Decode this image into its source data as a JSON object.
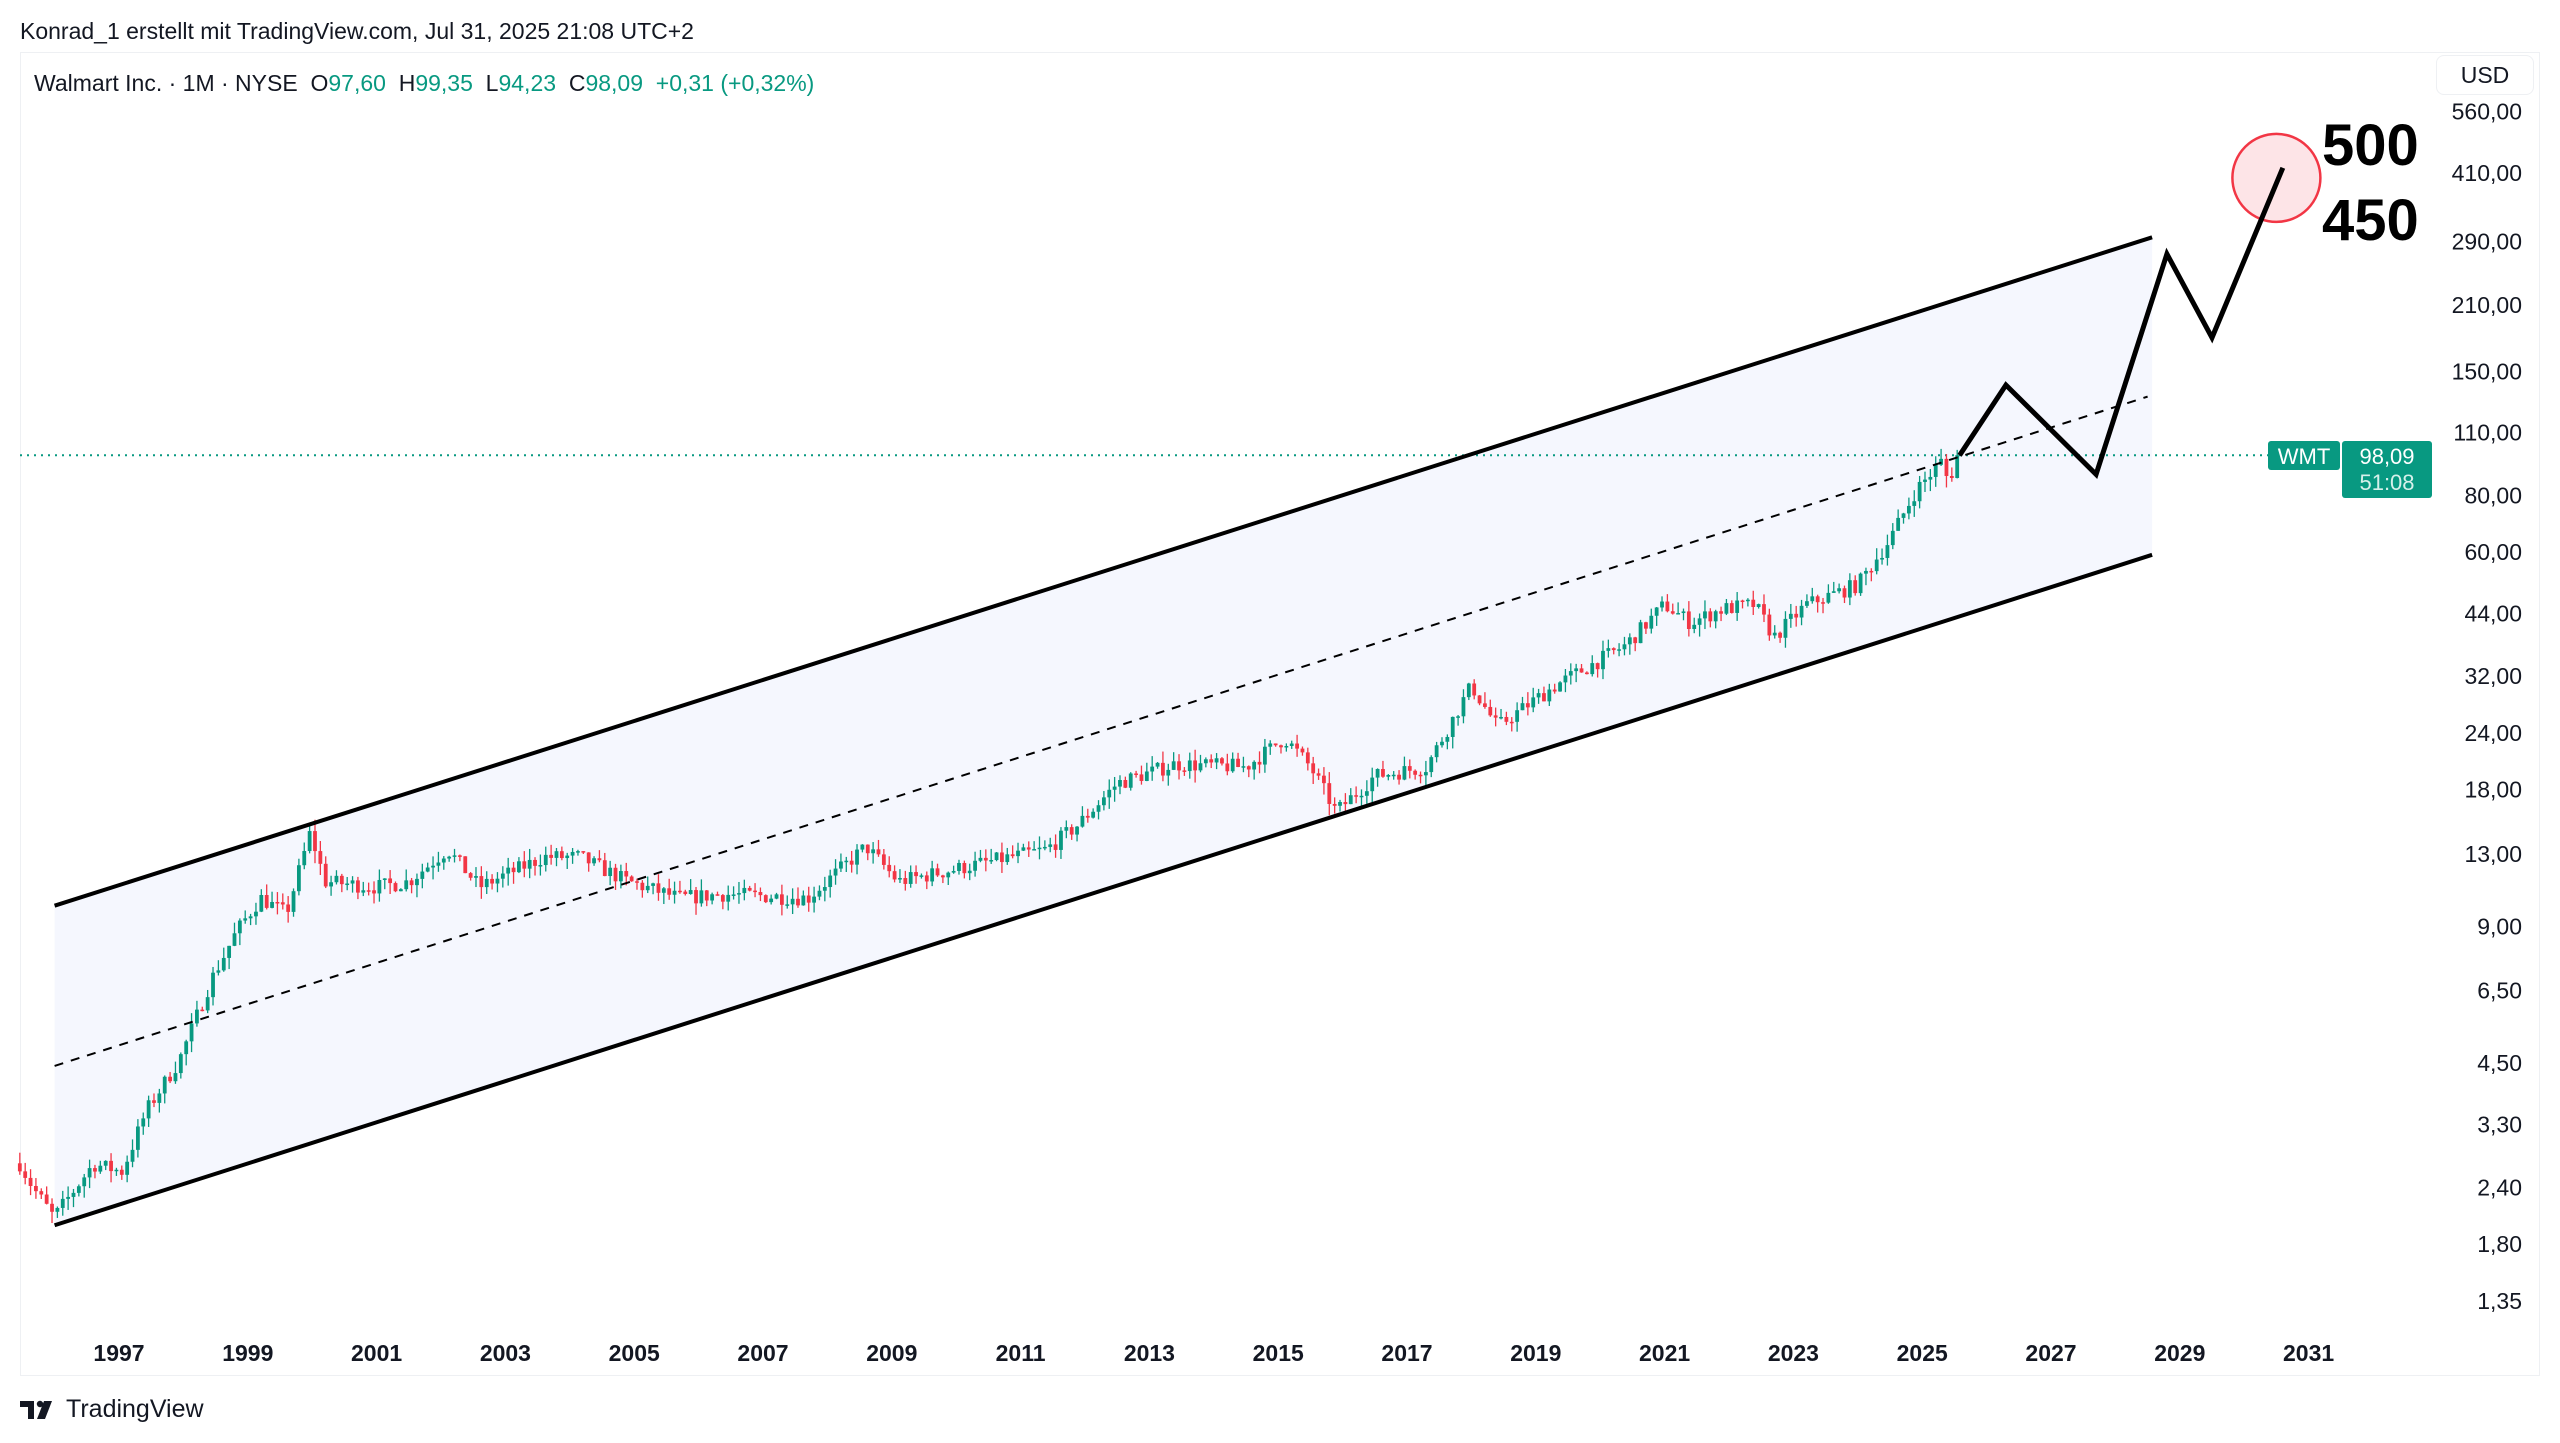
{
  "credit": "Konrad_1 erstellt mit TradingView.com, Jul 31, 2025 21:08 UTC+2",
  "legend": {
    "symbol": "Walmart Inc. · 1M · NYSE",
    "open_label": "O",
    "open": "97,60",
    "high_label": "H",
    "high": "99,35",
    "low_label": "L",
    "low": "94,23",
    "close_label": "C",
    "close": "98,09",
    "change": "+0,31 (+0,32%)"
  },
  "currency_button": "USD",
  "footer": {
    "logo_text": "TradingView",
    "icon": "tradingview-logo-icon"
  },
  "colors": {
    "up": "#089981",
    "down": "#f23645",
    "channel_fill": "#f5f7fe",
    "lines": "#000000",
    "target_circle": "#f23645"
  },
  "chart_data": {
    "type": "candlestick",
    "interval": "1M",
    "y_scale": "log",
    "grid": false,
    "y_ticks": [
      "560,00",
      "410,00",
      "290,00",
      "210,00",
      "150,00",
      "110,00",
      "80,00",
      "60,00",
      "44,00",
      "32,00",
      "24,00",
      "18,00",
      "13,00",
      "9,00",
      "6,50",
      "4,50",
      "3,30",
      "2,40",
      "1,80",
      "1,35"
    ],
    "x_ticks": [
      "1997",
      "1999",
      "2001",
      "2003",
      "2005",
      "2007",
      "2009",
      "2011",
      "2013",
      "2015",
      "2017",
      "2019",
      "2021",
      "2023",
      "2025",
      "2027",
      "2029",
      "2031"
    ],
    "price_path": [
      [
        1995.46,
        2.71
      ],
      [
        1995.66,
        2.4
      ],
      [
        1995.99,
        2.06
      ],
      [
        1996.6,
        2.7
      ],
      [
        1997.05,
        2.6
      ],
      [
        1997.43,
        3.55
      ],
      [
        1997.93,
        4.55
      ],
      [
        1998.44,
        6.9
      ],
      [
        1998.83,
        8.8
      ],
      [
        1999.2,
        10.4
      ],
      [
        1999.6,
        9.6
      ],
      [
        1999.97,
        14.5
      ],
      [
        2000.2,
        11.3
      ],
      [
        2001.0,
        11
      ],
      [
        2001.5,
        11.3
      ],
      [
        2002.1,
        13.3
      ],
      [
        2002.6,
        11
      ],
      [
        2003.6,
        12.8
      ],
      [
        2004.15,
        12.8
      ],
      [
        2004.9,
        11.3
      ],
      [
        2005.7,
        10.4
      ],
      [
        2006.4,
        10.6
      ],
      [
        2007.7,
        10.4
      ],
      [
        2008.6,
        13.5
      ],
      [
        2009.1,
        11.3
      ],
      [
        2010.4,
        12.4
      ],
      [
        2011.4,
        13.3
      ],
      [
        2011.9,
        15.1
      ],
      [
        2012.5,
        18.6
      ],
      [
        2013.4,
        20.5
      ],
      [
        2014.5,
        20.2
      ],
      [
        2015.1,
        23.4
      ],
      [
        2015.5,
        20.2
      ],
      [
        2015.9,
        16.1
      ],
      [
        2016.5,
        19.3
      ],
      [
        2017.3,
        20.2
      ],
      [
        2018.0,
        30.5
      ],
      [
        2018.4,
        24.8
      ],
      [
        2019.3,
        30.5
      ],
      [
        2020.4,
        37.5
      ],
      [
        2021.0,
        46
      ],
      [
        2021.4,
        42
      ],
      [
        2021.9,
        45
      ],
      [
        2022.4,
        46
      ],
      [
        2022.7,
        39
      ],
      [
        2023.2,
        46
      ],
      [
        2024.0,
        50.9
      ],
      [
        2024.5,
        64
      ],
      [
        2024.9,
        82
      ],
      [
        2025.3,
        95
      ],
      [
        2025.4,
        86
      ],
      [
        2025.58,
        98.09
      ]
    ],
    "last_price": {
      "symbol": "WMT",
      "value": "98,09",
      "countdown": "51:08",
      "price": 98.09
    },
    "channel": {
      "upper": [
        [
          1996.0,
          10.0
        ],
        [
          2028.57,
          296
        ]
      ],
      "lower": [
        [
          1996.0,
          1.98
        ],
        [
          2028.57,
          59.2
        ]
      ],
      "middle": [
        [
          1996.0,
          4.44
        ],
        [
          2028.5,
          132
        ]
      ]
    },
    "projection": [
      [
        2025.58,
        98
      ],
      [
        2026.3,
        140
      ],
      [
        2027.7,
        89
      ],
      [
        2028.8,
        272
      ],
      [
        2029.5,
        178
      ],
      [
        2030.6,
        421
      ]
    ],
    "target_circle": [
      2030.5,
      400
    ],
    "annotations": [
      "500",
      "450"
    ]
  }
}
